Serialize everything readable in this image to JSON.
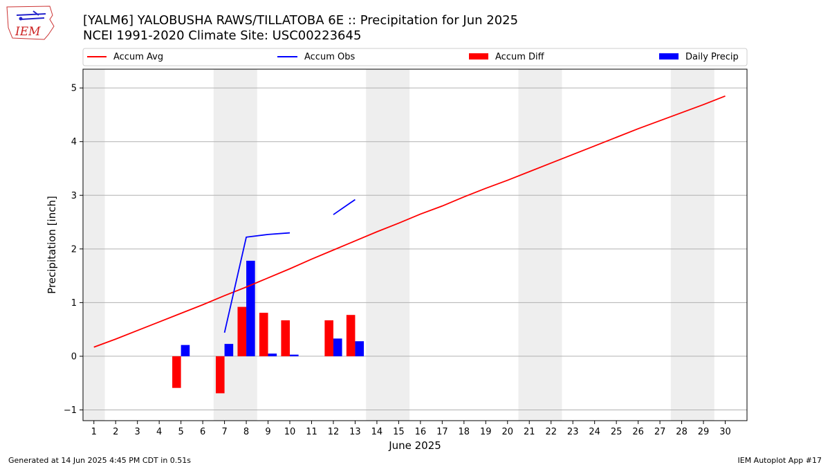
{
  "logo": {
    "text": "IEM"
  },
  "chart_data": {
    "type": "bar",
    "title": "[YALM6] YALOBUSHA RAWS/TILLATOBA 6E :: Precipitation for Jun 2025",
    "subtitle": "NCEI 1991-2020 Climate Site: USC00223645",
    "xlabel": "June 2025",
    "ylabel": "Precipitation [inch]",
    "ylim": [
      -1.2,
      5.35
    ],
    "xlim": [
      0.5,
      31.0
    ],
    "yticks": [
      -1,
      0,
      1,
      2,
      3,
      4,
      5
    ],
    "x": [
      1,
      2,
      3,
      4,
      5,
      6,
      7,
      8,
      9,
      10,
      11,
      12,
      13,
      14,
      15,
      16,
      17,
      18,
      19,
      20,
      21,
      22,
      23,
      24,
      25,
      26,
      27,
      28,
      29,
      30
    ],
    "weekend_bands": [
      [
        0.5,
        1.5
      ],
      [
        6.5,
        8.5
      ],
      [
        13.5,
        15.5
      ],
      [
        20.5,
        22.5
      ],
      [
        27.5,
        29.5
      ]
    ],
    "grid": "y",
    "legend_placement": "top",
    "series": [
      {
        "name": "Accum Avg",
        "kind": "line",
        "color": "#ff0000",
        "values": [
          0.17,
          0.32,
          0.48,
          0.64,
          0.8,
          0.96,
          1.13,
          1.29,
          1.46,
          1.63,
          1.81,
          1.98,
          2.15,
          2.32,
          2.48,
          2.65,
          2.8,
          2.97,
          3.13,
          3.28,
          3.44,
          3.6,
          3.76,
          3.92,
          4.08,
          4.24,
          4.39,
          4.54,
          4.69,
          4.85
        ]
      },
      {
        "name": "Accum Obs",
        "kind": "line",
        "color": "#0000ff",
        "segments": [
          [
            [
              7,
              0.44
            ],
            [
              8,
              2.22
            ],
            [
              9,
              2.27
            ],
            [
              10,
              2.3
            ]
          ],
          [
            [
              12,
              2.64
            ],
            [
              13,
              2.92
            ]
          ]
        ]
      },
      {
        "name": "Accum Diff",
        "kind": "bar",
        "color": "#ff0000",
        "points": [
          [
            5,
            -0.59
          ],
          [
            7,
            -0.69
          ],
          [
            8,
            0.92
          ],
          [
            9,
            0.81
          ],
          [
            10,
            0.67
          ],
          [
            12,
            0.67
          ],
          [
            13,
            0.77
          ]
        ]
      },
      {
        "name": "Daily Precip",
        "kind": "bar",
        "color": "#0000ff",
        "points": [
          [
            5,
            0.21
          ],
          [
            7,
            0.23
          ],
          [
            8,
            1.78
          ],
          [
            9,
            0.05
          ],
          [
            10,
            0.03
          ],
          [
            12,
            0.33
          ],
          [
            13,
            0.28
          ]
        ]
      }
    ]
  },
  "footer": {
    "left": "Generated at 14 Jun 2025 4:45 PM CDT in 0.51s",
    "right": "IEM Autoplot App #17"
  }
}
